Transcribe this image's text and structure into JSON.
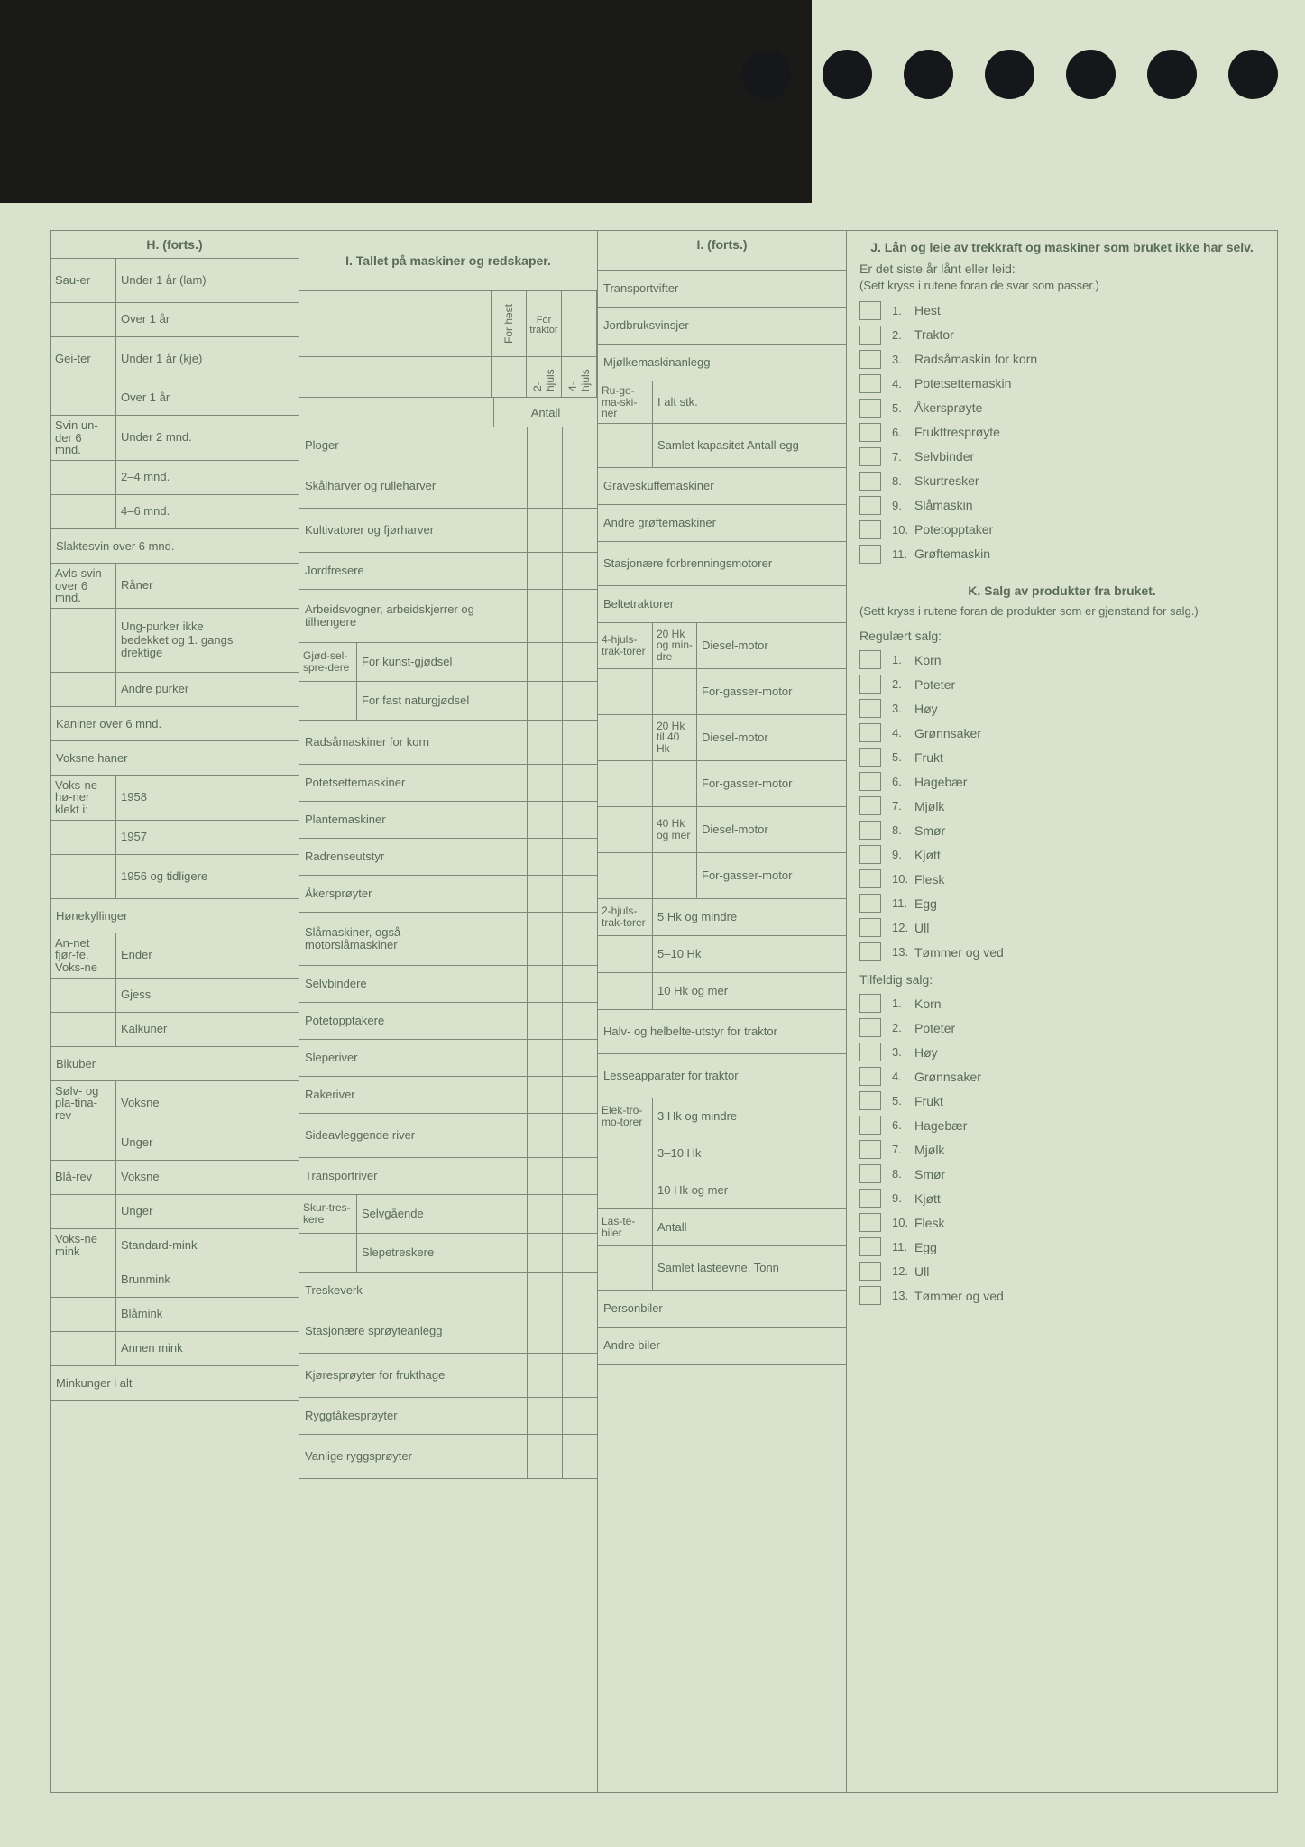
{
  "hdr": {
    "H": "H. (forts.)",
    "I": "I. Tallet på maskiner og redskaper.",
    "IC": "I. (forts.)",
    "J": "J. Lån og leie av trekkraft og maskiner som bruket ikke har selv.",
    "K": "K. Salg av produkter fra bruket."
  },
  "ih": {
    "for": "For traktor",
    "hest": "For hest",
    "h2": "2-hjuls",
    "h4": "4-hjuls",
    "ant": "Antall"
  },
  "colors": {
    "pagebg": "#d8e2cc",
    "border": "#7a8a78",
    "text": "#5a6b5a",
    "holes": "#16171a"
  },
  "H": [
    {
      "g": "Sau-er",
      "s": [
        [
          "Under 1 år (lam)"
        ],
        [
          "Over 1 år"
        ]
      ]
    },
    {
      "g": "Gei-ter",
      "s": [
        [
          "Under 1 år (kje)"
        ],
        [
          "Over 1 år"
        ]
      ]
    },
    {
      "g": "Svin un-der 6 mnd.",
      "s": [
        [
          "Under 2 mnd."
        ],
        [
          "2–4 mnd."
        ],
        [
          "4–6 mnd."
        ]
      ]
    },
    {
      "full": "Slaktesvin over 6 mnd."
    },
    {
      "g": "Avls-svin over 6 mnd.",
      "s": [
        [
          "Råner"
        ],
        [
          "Ung-purker ikke bedekket og 1. gangs drektige"
        ],
        [
          "Andre purker"
        ]
      ]
    },
    {
      "full": "Kaniner over 6 mnd."
    },
    {
      "full": "Voksne haner"
    },
    {
      "g": "Voks-ne hø-ner klekt i:",
      "s": [
        [
          "1958"
        ],
        [
          "1957"
        ],
        [
          "1956 og tidligere"
        ]
      ]
    },
    {
      "full": "Hønekyllinger"
    },
    {
      "g": "An-net fjør-fe. Voks-ne",
      "s": [
        [
          "Ender"
        ],
        [
          "Gjess"
        ],
        [
          "Kalkuner"
        ]
      ]
    },
    {
      "full": "Bikuber"
    },
    {
      "g": "Sølv- og pla-tina-rev",
      "s": [
        [
          "Voksne"
        ],
        [
          "Unger"
        ]
      ]
    },
    {
      "g": "Blå-rev",
      "s": [
        [
          "Voksne"
        ],
        [
          "Unger"
        ]
      ]
    },
    {
      "g": "Voks-ne mink",
      "s": [
        [
          "Standard-mink"
        ],
        [
          "Brunmink"
        ],
        [
          "Blåmink"
        ],
        [
          "Annen mink"
        ]
      ]
    },
    {
      "full": "Minkunger i alt"
    }
  ],
  "I": [
    {
      "lbl": "Ploger"
    },
    {
      "lbl": "Skålharver og rulleharver"
    },
    {
      "lbl": "Kultivatorer og fjørharver"
    },
    {
      "lbl": "Jordfresere"
    },
    {
      "lbl": "Arbeidsvogner, arbeidskjerrer og tilhengere"
    },
    {
      "g": "Gjød-sel-spre-dere",
      "s": [
        "For kunst-gjødsel",
        "For fast naturgjødsel"
      ]
    },
    {
      "lbl": "Radsåmaskiner for korn"
    },
    {
      "lbl": "Potetsettemaskiner"
    },
    {
      "lbl": "Plantemaskiner"
    },
    {
      "lbl": "Radrenseutstyr"
    },
    {
      "lbl": "Åkersprøyter"
    },
    {
      "lbl": "Slåmaskiner, også motorslåmaskiner"
    },
    {
      "lbl": "Selvbindere"
    },
    {
      "lbl": "Potetopptakere"
    },
    {
      "lbl": "Sleperiver"
    },
    {
      "lbl": "Rakeriver"
    },
    {
      "lbl": "Sideavleggende river"
    },
    {
      "lbl": "Transportriver"
    },
    {
      "g": "Skur-tres-kere",
      "s": [
        "Selvgående",
        "Slepetreskere"
      ]
    },
    {
      "lbl": "Treskeverk"
    },
    {
      "lbl": "Stasjonære sprøyteanlegg"
    },
    {
      "lbl": "Kjøresprøyter for frukthage"
    },
    {
      "lbl": "Ryggtåkesprøyter"
    },
    {
      "lbl": "Vanlige ryggsprøyter"
    }
  ],
  "IC": [
    {
      "l": "Transportvifter"
    },
    {
      "l": "Jordbruksvinsjer"
    },
    {
      "l": "Mjølkemaskinanlegg"
    },
    {
      "g": "Ru-ge-ma-ski-ner",
      "s": [
        "I alt stk.",
        "Samlet kapasitet Antall egg"
      ]
    },
    {
      "l": "Graveskuffemaskiner"
    },
    {
      "l": "Andre grøftemaskiner"
    },
    {
      "l": "Stasjonære forbrenningsmotorer"
    },
    {
      "l": "Beltetraktorer"
    },
    {
      "g": "4-hjuls-trak-torer",
      "sub": [
        {
          "a": "20 Hk og min-dre",
          "s": [
            "Diesel-motor",
            "For-gasser-motor"
          ]
        },
        {
          "a": "20 Hk til 40 Hk",
          "s": [
            "Diesel-motor",
            "For-gasser-motor"
          ]
        },
        {
          "a": "40 Hk og mer",
          "s": [
            "Diesel-motor",
            "For-gasser-motor"
          ]
        }
      ]
    },
    {
      "g": "2-hjuls-trak-torer",
      "s": [
        "5 Hk og mindre",
        "5–10 Hk",
        "10 Hk og mer"
      ]
    },
    {
      "l": "Halv- og helbelte-utstyr for traktor"
    },
    {
      "l": "Lesseapparater for traktor"
    },
    {
      "g": "Elek-tro-mo-torer",
      "s": [
        "3 Hk og mindre",
        "3–10 Hk",
        "10 Hk og mer"
      ]
    },
    {
      "g": "Las-te-biler",
      "s": [
        "Antall",
        "Samlet lasteevne. Tonn"
      ]
    },
    {
      "l": "Personbiler"
    },
    {
      "l": "Andre biler"
    }
  ],
  "J": {
    "q": "Er det siste år lånt eller leid:",
    "note": "(Sett kryss i rutene foran de svar som passer.)",
    "items": [
      "Hest",
      "Traktor",
      "Radsåmaskin for korn",
      "Potetsettemaskin",
      "Åkersprøyte",
      "Frukttresprøyte",
      "Selvbinder",
      "Skurtresker",
      "Slåmaskin",
      "Potetopptaker",
      "Grøftemaskin"
    ]
  },
  "K": {
    "note": "(Sett kryss i rutene foran de produkter som er gjenstand for salg.)",
    "reg": "Regulært salg:",
    "til": "Tilfeldig salg:",
    "items": [
      "Korn",
      "Poteter",
      "Høy",
      "Grønnsaker",
      "Frukt",
      "Hagebær",
      "Mjølk",
      "Smør",
      "Kjøtt",
      "Flesk",
      "Egg",
      "Ull",
      "Tømmer og ved"
    ]
  }
}
